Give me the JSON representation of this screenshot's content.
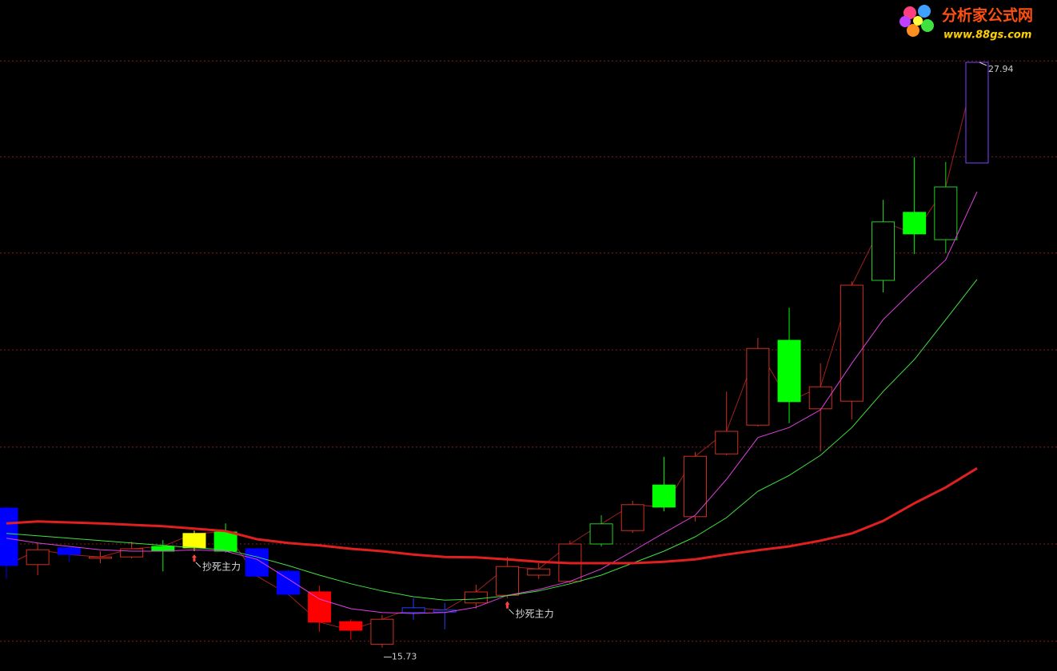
{
  "chart_data": {
    "type": "candlestick",
    "ylim": [
      15.24,
      29.24
    ],
    "grid_lines": [
      27.97,
      25.97,
      23.96,
      21.94,
      19.91,
      17.89,
      15.86
    ],
    "candles": {
      "open": [
        18.64,
        17.46,
        17.81,
        17.59,
        17.62,
        17.74,
        17.81,
        17.74,
        17.79,
        17.32,
        16.89,
        16.27,
        15.8,
        16.46,
        16.47,
        16.66,
        16.82,
        17.24,
        17.11,
        17.89,
        18.17,
        19.12,
        18.46,
        19.77,
        20.37,
        22.14,
        20.71,
        20.87,
        23.39,
        24.81,
        24.24,
        25.84
      ],
      "high": [
        18.67,
        17.91,
        17.84,
        17.74,
        17.94,
        17.97,
        18.17,
        18.32,
        17.81,
        17.36,
        17.02,
        16.32,
        16.41,
        16.76,
        16.66,
        17.04,
        17.62,
        17.49,
        17.96,
        18.49,
        18.79,
        19.71,
        19.81,
        21.07,
        22.19,
        22.82,
        21.66,
        23.37,
        25.07,
        25.96,
        25.86,
        27.94
      ],
      "low": [
        17.16,
        17.24,
        17.52,
        17.49,
        17.59,
        17.32,
        17.74,
        17.71,
        17.21,
        16.81,
        16.06,
        15.89,
        15.73,
        16.31,
        16.11,
        16.54,
        16.76,
        17.16,
        17.07,
        17.84,
        18.12,
        18.57,
        18.36,
        19.74,
        20.34,
        20.41,
        19.82,
        20.49,
        23.14,
        23.94,
        23.96,
        25.84
      ],
      "close": [
        17.44,
        17.77,
        17.67,
        17.62,
        17.79,
        17.84,
        18.11,
        18.14,
        17.22,
        16.84,
        16.26,
        16.09,
        16.32,
        16.56,
        16.51,
        16.89,
        17.42,
        17.37,
        17.89,
        18.31,
        18.71,
        18.66,
        19.72,
        20.24,
        21.97,
        20.86,
        21.17,
        23.29,
        24.61,
        24.36,
        25.34,
        27.94
      ],
      "colors": [
        "#0000ff",
        "#d03020",
        "#0000ff",
        "#d03020",
        "#d03020",
        "#00ff00",
        "#ffff00",
        "#00ff00",
        "#0000ff",
        "#0000ff",
        "#ff0000",
        "#ff0000",
        "#d03020",
        "#2040ff",
        "#2040ff",
        "#d03020",
        "#d03020",
        "#d03020",
        "#d03020",
        "#20d020",
        "#d03020",
        "#00ff00",
        "#d03020",
        "#d03020",
        "#d03020",
        "#00ff00",
        "#d03020",
        "#d03020",
        "#20d020",
        "#00ff00",
        "#20d020",
        "#8040ff"
      ],
      "filled": [
        true,
        false,
        true,
        false,
        false,
        true,
        true,
        true,
        true,
        true,
        true,
        true,
        false,
        false,
        false,
        false,
        false,
        false,
        false,
        false,
        false,
        true,
        false,
        false,
        false,
        true,
        false,
        false,
        false,
        true,
        false,
        false
      ]
    },
    "close_line_color": "#a02020",
    "moving_averages": [
      {
        "color": "#e040e0",
        "width": 1,
        "values": [
          18.01,
          17.91,
          17.84,
          17.77,
          17.74,
          17.74,
          17.77,
          17.74,
          17.57,
          17.16,
          16.74,
          16.54,
          16.46,
          16.44,
          16.46,
          16.57,
          16.82,
          16.94,
          17.11,
          17.37,
          17.74,
          18.12,
          18.49,
          19.24,
          20.11,
          20.32,
          20.69,
          21.66,
          22.57,
          23.21,
          23.82,
          25.24
        ]
      },
      {
        "color": "#40e040",
        "width": 1,
        "values": [
          18.11,
          18.06,
          18.01,
          17.96,
          17.91,
          17.86,
          17.81,
          17.77,
          17.62,
          17.44,
          17.24,
          17.06,
          16.91,
          16.79,
          16.72,
          16.74,
          16.81,
          16.91,
          17.06,
          17.24,
          17.49,
          17.74,
          18.04,
          18.44,
          18.99,
          19.32,
          19.74,
          20.32,
          21.07,
          21.74,
          22.57,
          23.41
        ]
      },
      {
        "color": "#e02020",
        "width": 3,
        "values": [
          18.32,
          18.36,
          18.34,
          18.32,
          18.29,
          18.26,
          18.21,
          18.16,
          17.99,
          17.91,
          17.86,
          17.79,
          17.74,
          17.67,
          17.62,
          17.61,
          17.57,
          17.52,
          17.49,
          17.49,
          17.49,
          17.52,
          17.57,
          17.67,
          17.76,
          17.84,
          17.96,
          18.11,
          18.37,
          18.74,
          19.07,
          19.47
        ]
      }
    ],
    "signals": [
      null,
      null,
      null,
      null,
      null,
      null,
      "抄死主力",
      null,
      null,
      null,
      null,
      null,
      null,
      null,
      null,
      null,
      "抄死主力",
      null,
      null,
      null,
      null,
      null,
      null,
      null,
      null,
      null,
      null,
      null,
      null,
      null,
      null,
      null
    ],
    "grid": true
  },
  "watermark": {
    "title": "分析家公式网",
    "url": "www.88gs.com"
  }
}
